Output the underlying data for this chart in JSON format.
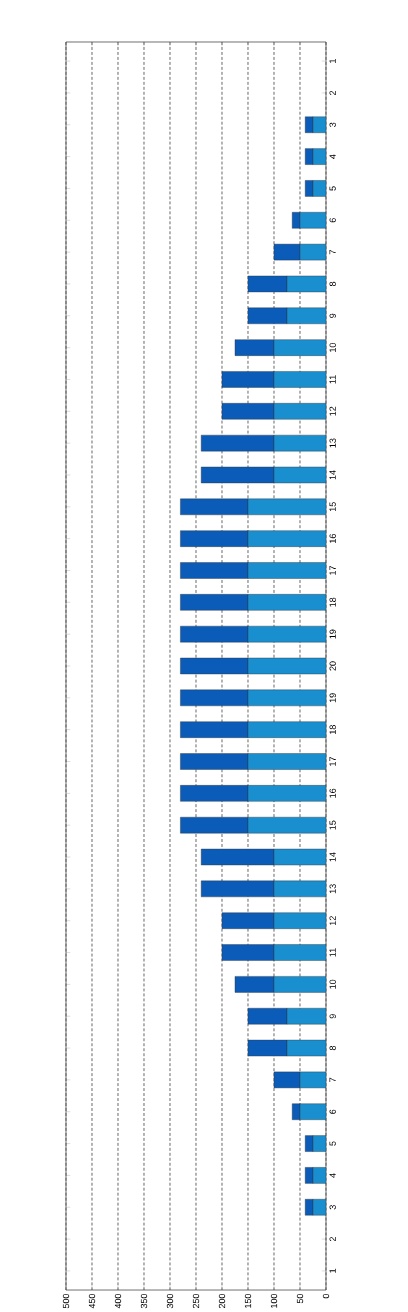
{
  "chart_data": {
    "type": "bar",
    "orientation": "horizontal",
    "stacked": true,
    "categories": [
      "1",
      "2",
      "3",
      "4",
      "5",
      "6",
      "7",
      "8",
      "9",
      "10",
      "11",
      "12",
      "13",
      "14",
      "15",
      "16",
      "17",
      "18",
      "19",
      "20",
      "19",
      "18",
      "17",
      "16",
      "15",
      "14",
      "13",
      "12",
      "11",
      "10",
      "9",
      "8",
      "7",
      "6",
      "5",
      "4",
      "3",
      "2",
      "1"
    ],
    "series": [
      {
        "color": "#1a8fd0",
        "values": [
          0,
          0,
          25,
          25,
          25,
          50,
          50,
          75,
          75,
          100,
          100,
          100,
          100,
          100,
          150,
          150,
          150,
          150,
          150,
          150,
          150,
          150,
          150,
          150,
          150,
          100,
          100,
          100,
          100,
          100,
          75,
          75,
          50,
          50,
          25,
          25,
          25,
          0,
          0
        ]
      },
      {
        "color": "#0a5cb8",
        "values": [
          0,
          0,
          15,
          15,
          15,
          15,
          50,
          75,
          75,
          75,
          100,
          100,
          140,
          140,
          130,
          130,
          130,
          130,
          130,
          130,
          130,
          130,
          130,
          130,
          130,
          140,
          140,
          100,
          100,
          75,
          75,
          75,
          50,
          15,
          15,
          15,
          15,
          0,
          0
        ]
      }
    ],
    "xlim": [
      500,
      0
    ],
    "xticks": [
      0,
      50,
      100,
      150,
      200,
      250,
      300,
      350,
      400,
      450,
      500
    ],
    "grid": "x"
  }
}
